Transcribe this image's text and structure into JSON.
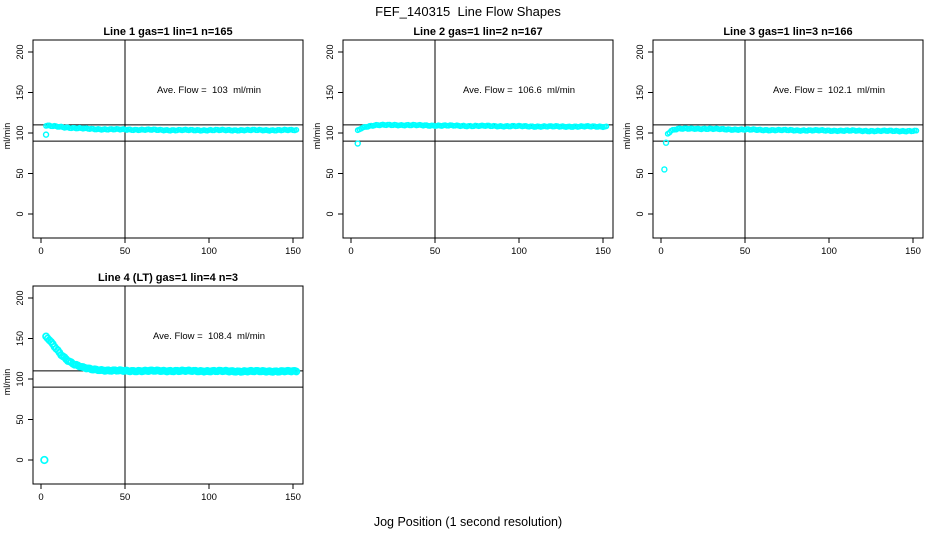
{
  "figure": {
    "title": "FEF_140315  Line Flow Shapes",
    "xlabel": "Jog Position (1 second resolution)",
    "background_color": "#FFFFFF",
    "point_color": "#00FFFF",
    "line_color": "#000000",
    "point_shape": "open-circle"
  },
  "chart_data": [
    {
      "type": "scatter",
      "title": "Line 1 gas=1 lin=1 n=165",
      "annotation": "Ave. Flow =  103  ml/min",
      "ave_flow_ml_min": 103,
      "ylabel": "ml/min",
      "x_ticks": [
        0,
        50,
        100,
        150
      ],
      "y_ticks": [
        0,
        50,
        100,
        150,
        200
      ],
      "xlim": [
        -6,
        156
      ],
      "ylim": [
        -28,
        215
      ],
      "grid": false,
      "vline_x": 50,
      "hlines_y": [
        90,
        110
      ],
      "outliers": [
        [
          3,
          98
        ]
      ],
      "series_profile": [
        [
          3,
          109
        ],
        [
          6,
          108.5
        ],
        [
          10,
          108
        ],
        [
          15,
          107
        ],
        [
          20,
          106
        ],
        [
          30,
          105
        ],
        [
          40,
          104.5
        ],
        [
          60,
          104
        ],
        [
          80,
          103.5
        ],
        [
          100,
          103.5
        ],
        [
          120,
          103.5
        ],
        [
          152,
          103.5
        ]
      ],
      "x_step": 1,
      "marker_r": 2.2
    },
    {
      "type": "scatter",
      "title": "Line 2 gas=1 lin=2 n=167",
      "annotation": "Ave. Flow =  106.6  ml/min",
      "ave_flow_ml_min": 106.6,
      "ylabel": "ml/min",
      "x_ticks": [
        0,
        50,
        100,
        150
      ],
      "y_ticks": [
        0,
        50,
        100,
        150,
        200
      ],
      "xlim": [
        -6,
        156
      ],
      "ylim": [
        -28,
        215
      ],
      "grid": false,
      "vline_x": 50,
      "hlines_y": [
        90,
        110
      ],
      "outliers": [
        [
          4,
          87
        ]
      ],
      "series_profile": [
        [
          4,
          103
        ],
        [
          6,
          106
        ],
        [
          9,
          108
        ],
        [
          14,
          109.5
        ],
        [
          25,
          110
        ],
        [
          40,
          109.5
        ],
        [
          60,
          109
        ],
        [
          90,
          108.5
        ],
        [
          120,
          108
        ],
        [
          152,
          108
        ]
      ],
      "x_step": 1,
      "marker_r": 2.2
    },
    {
      "type": "scatter",
      "title": "Line 3 gas=1 lin=3 n=166",
      "annotation": "Ave. Flow =  102.1  ml/min",
      "ave_flow_ml_min": 102.1,
      "ylabel": "ml/min",
      "x_ticks": [
        0,
        50,
        100,
        150
      ],
      "y_ticks": [
        0,
        50,
        100,
        150,
        200
      ],
      "xlim": [
        -6,
        156
      ],
      "ylim": [
        -28,
        215
      ],
      "grid": false,
      "vline_x": 50,
      "hlines_y": [
        90,
        110
      ],
      "outliers": [
        [
          2,
          55
        ],
        [
          3,
          88
        ]
      ],
      "series_profile": [
        [
          4,
          99
        ],
        [
          6,
          103
        ],
        [
          10,
          105
        ],
        [
          20,
          105.5
        ],
        [
          40,
          104.5
        ],
        [
          70,
          103.5
        ],
        [
          100,
          103
        ],
        [
          130,
          102.5
        ],
        [
          152,
          102.5
        ]
      ],
      "x_step": 1,
      "marker_r": 2.2
    },
    {
      "type": "scatter",
      "title": "Line 4 (LT) gas=1 lin=4 n=3",
      "annotation": "Ave. Flow =  108.4  ml/min",
      "ave_flow_ml_min": 108.4,
      "ylabel": "ml/min",
      "x_ticks": [
        0,
        50,
        100,
        150
      ],
      "y_ticks": [
        0,
        50,
        100,
        150,
        200
      ],
      "xlim": [
        -6,
        156
      ],
      "ylim": [
        -28,
        215
      ],
      "grid": false,
      "vline_x": 50,
      "hlines_y": [
        90,
        110
      ],
      "outliers": [
        [
          2,
          0
        ]
      ],
      "series_profile": [
        [
          3,
          152
        ],
        [
          5,
          148
        ],
        [
          8,
          140
        ],
        [
          12,
          130
        ],
        [
          16,
          123
        ],
        [
          20,
          118
        ],
        [
          25,
          114
        ],
        [
          30,
          112
        ],
        [
          40,
          110.5
        ],
        [
          50,
          110
        ],
        [
          80,
          110
        ],
        [
          120,
          109.5
        ],
        [
          152,
          109.5
        ]
      ],
      "x_step": 1,
      "marker_r": 3
    }
  ]
}
